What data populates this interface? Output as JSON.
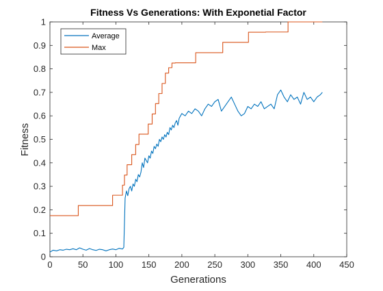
{
  "chart_data": {
    "type": "line",
    "title": "Fitness Vs Generations: With Exponetial Factor",
    "xlabel": "Generations",
    "ylabel": "Fitness",
    "xlim": [
      0,
      450
    ],
    "ylim": [
      0,
      1
    ],
    "xticks": [
      0,
      50,
      100,
      150,
      200,
      250,
      300,
      350,
      400,
      450
    ],
    "yticks": [
      0,
      0.1,
      0.2,
      0.3,
      0.4,
      0.5,
      0.6,
      0.7,
      0.8,
      0.9,
      1
    ],
    "grid": false,
    "legend_position": "top-left",
    "series": [
      {
        "name": "Average",
        "color": "#0072BD",
        "x": [
          0,
          5,
          10,
          15,
          20,
          25,
          30,
          35,
          40,
          45,
          50,
          55,
          60,
          65,
          70,
          75,
          80,
          85,
          90,
          95,
          100,
          105,
          110,
          112,
          114,
          116,
          118,
          120,
          122,
          124,
          126,
          128,
          130,
          132,
          134,
          136,
          138,
          140,
          142,
          144,
          146,
          148,
          150,
          152,
          154,
          156,
          158,
          160,
          162,
          164,
          166,
          168,
          170,
          172,
          174,
          176,
          178,
          180,
          182,
          184,
          186,
          188,
          190,
          192,
          194,
          196,
          198,
          200,
          205,
          210,
          215,
          220,
          225,
          230,
          235,
          240,
          245,
          250,
          255,
          260,
          265,
          270,
          275,
          280,
          285,
          290,
          295,
          300,
          305,
          310,
          315,
          320,
          325,
          330,
          335,
          340,
          345,
          350,
          355,
          360,
          365,
          370,
          375,
          380,
          385,
          390,
          395,
          400,
          405,
          410,
          413
        ],
        "y": [
          0.02,
          0.028,
          0.025,
          0.03,
          0.028,
          0.032,
          0.03,
          0.034,
          0.03,
          0.038,
          0.032,
          0.028,
          0.035,
          0.03,
          0.027,
          0.032,
          0.03,
          0.025,
          0.03,
          0.033,
          0.03,
          0.036,
          0.033,
          0.04,
          0.25,
          0.28,
          0.26,
          0.29,
          0.3,
          0.28,
          0.31,
          0.3,
          0.33,
          0.32,
          0.35,
          0.34,
          0.36,
          0.4,
          0.38,
          0.42,
          0.41,
          0.4,
          0.43,
          0.42,
          0.45,
          0.44,
          0.47,
          0.46,
          0.48,
          0.47,
          0.5,
          0.49,
          0.51,
          0.5,
          0.52,
          0.51,
          0.53,
          0.52,
          0.55,
          0.54,
          0.56,
          0.55,
          0.57,
          0.58,
          0.56,
          0.59,
          0.6,
          0.61,
          0.6,
          0.62,
          0.61,
          0.63,
          0.62,
          0.6,
          0.63,
          0.65,
          0.64,
          0.66,
          0.67,
          0.62,
          0.64,
          0.66,
          0.68,
          0.65,
          0.62,
          0.6,
          0.61,
          0.64,
          0.63,
          0.65,
          0.64,
          0.66,
          0.63,
          0.64,
          0.65,
          0.63,
          0.69,
          0.71,
          0.68,
          0.66,
          0.69,
          0.67,
          0.68,
          0.65,
          0.7,
          0.67,
          0.68,
          0.66,
          0.68,
          0.69,
          0.7
        ]
      },
      {
        "name": "Max",
        "color": "#D95319",
        "x": [
          0,
          43,
          43,
          95,
          95,
          110,
          110,
          113,
          113,
          117,
          117,
          124,
          124,
          130,
          130,
          135,
          135,
          149,
          149,
          155,
          155,
          160,
          160,
          165,
          165,
          170,
          170,
          175,
          175,
          180,
          180,
          185,
          185,
          190,
          190,
          221,
          221,
          262,
          262,
          301,
          301,
          327,
          327,
          361,
          361,
          410,
          410,
          413
        ],
        "y": [
          0.175,
          0.175,
          0.218,
          0.218,
          0.262,
          0.262,
          0.305,
          0.305,
          0.348,
          0.348,
          0.392,
          0.392,
          0.435,
          0.435,
          0.478,
          0.478,
          0.522,
          0.522,
          0.565,
          0.565,
          0.608,
          0.608,
          0.652,
          0.652,
          0.695,
          0.695,
          0.738,
          0.738,
          0.782,
          0.782,
          0.805,
          0.805,
          0.825,
          0.825,
          0.826,
          0.826,
          0.869,
          0.869,
          0.913,
          0.913,
          0.956,
          0.956,
          0.957,
          0.957,
          1.0,
          1.0,
          1.0,
          1.0
        ]
      }
    ]
  }
}
